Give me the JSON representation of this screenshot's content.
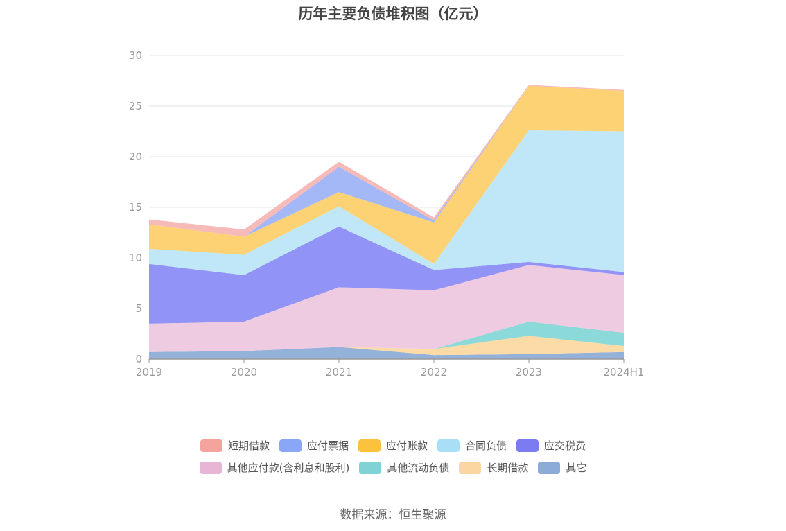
{
  "chart_data": {
    "type": "area",
    "stacked": true,
    "title": "历年主要负债堆积图（亿元）",
    "categories": [
      "2019",
      "2020",
      "2021",
      "2022",
      "2023",
      "2024H1"
    ],
    "ylim": [
      0,
      30
    ],
    "yticks": [
      0,
      5,
      10,
      15,
      20,
      25,
      30
    ],
    "grid": true,
    "legend_position": "bottom",
    "series": [
      {
        "name": "其它",
        "color": "#8eadd8",
        "values": [
          0.7,
          0.8,
          1.2,
          0.4,
          0.5,
          0.7
        ]
      },
      {
        "name": "长期借款",
        "color": "#fcd9a1",
        "values": [
          0.0,
          0.0,
          0.0,
          0.6,
          1.8,
          0.6
        ]
      },
      {
        "name": "其他流动负债",
        "color": "#85d7d7",
        "values": [
          0.0,
          0.0,
          0.0,
          0.0,
          1.4,
          1.3
        ]
      },
      {
        "name": "其他应付款(含利息和股利)",
        "color": "#eec8e0",
        "values": [
          2.8,
          2.9,
          5.9,
          5.8,
          5.6,
          5.7
        ]
      },
      {
        "name": "应交税费",
        "color": "#8b8ef5",
        "values": [
          5.9,
          4.6,
          6.0,
          2.0,
          0.3,
          0.3
        ]
      },
      {
        "name": "合同负债",
        "color": "#bde6f8",
        "values": [
          1.5,
          2.0,
          2.0,
          0.6,
          13.0,
          13.9
        ]
      },
      {
        "name": "应付账款",
        "color": "#fdd06e",
        "values": [
          2.4,
          1.8,
          1.4,
          4.1,
          4.4,
          4.0
        ]
      },
      {
        "name": "应付票据",
        "color": "#9fb4f8",
        "values": [
          0.0,
          0.0,
          2.5,
          0.2,
          0.0,
          0.0
        ]
      },
      {
        "name": "短期借款",
        "color": "#f6b7b5",
        "values": [
          0.5,
          0.7,
          0.5,
          0.3,
          0.1,
          0.1
        ]
      }
    ],
    "legend_rows": [
      [
        {
          "name": "短期借款",
          "color": "#f4a39d"
        },
        {
          "name": "应付票据",
          "color": "#8aa6f7"
        },
        {
          "name": "应付账款",
          "color": "#fbc33d"
        },
        {
          "name": "合同负债",
          "color": "#a9def7"
        },
        {
          "name": "应交税费",
          "color": "#7b7cf2"
        }
      ],
      [
        {
          "name": "其他应付款(含利息和股利)",
          "color": "#e7b6d6"
        },
        {
          "name": "其他流动负债",
          "color": "#7fd3d5"
        },
        {
          "name": "长期借款",
          "color": "#fcd6a0"
        },
        {
          "name": "其它",
          "color": "#8cabd9"
        }
      ]
    ]
  },
  "footer": {
    "source": "数据来源：恒生聚源"
  }
}
